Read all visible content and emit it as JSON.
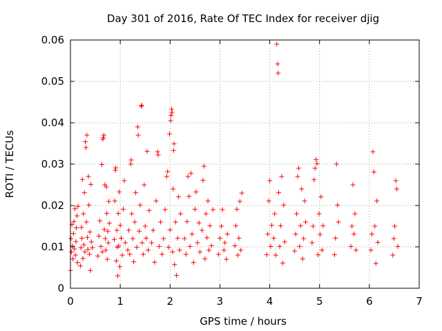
{
  "chart_data": {
    "type": "scatter",
    "title": "Day 301 of 2016, Rate Of TEC Index for receiver djig",
    "xlabel": "GPS time / hours",
    "ylabel": "ROTI / TECUs",
    "xlim": [
      0,
      7
    ],
    "ylim": [
      0,
      0.06
    ],
    "xticks": [
      "0",
      "1",
      "2",
      "3",
      "4",
      "5",
      "6",
      "7"
    ],
    "yticks": [
      "0",
      "0.01",
      "0.02",
      "0.03",
      "0.04",
      "0.05",
      "0.06"
    ],
    "grid": true,
    "marker": "+",
    "color": "#ff0000",
    "series": [
      {
        "name": "ROTI",
        "points": [
          [
            0.0,
            0.0043
          ],
          [
            0.01,
            0.012
          ],
          [
            0.02,
            0.0088
          ],
          [
            0.03,
            0.0154
          ],
          [
            0.04,
            0.0102
          ],
          [
            0.05,
            0.0071
          ],
          [
            0.06,
            0.0132
          ],
          [
            0.07,
            0.0161
          ],
          [
            0.08,
            0.0095
          ],
          [
            0.09,
            0.0192
          ],
          [
            0.1,
            0.008
          ],
          [
            0.11,
            0.0113
          ],
          [
            0.12,
            0.0146
          ],
          [
            0.13,
            0.0175
          ],
          [
            0.14,
            0.0062
          ],
          [
            0.15,
            0.0198
          ],
          [
            0.2,
            0.0054
          ],
          [
            0.21,
            0.0098
          ],
          [
            0.22,
            0.0147
          ],
          [
            0.23,
            0.0121
          ],
          [
            0.24,
            0.0263
          ],
          [
            0.25,
            0.0072
          ],
          [
            0.26,
            0.018
          ],
          [
            0.27,
            0.0105
          ],
          [
            0.28,
            0.0231
          ],
          [
            0.29,
            0.0088
          ],
          [
            0.3,
            0.0354
          ],
          [
            0.31,
            0.034
          ],
          [
            0.32,
            0.016
          ],
          [
            0.33,
            0.037
          ],
          [
            0.34,
            0.0123
          ],
          [
            0.35,
            0.0094
          ],
          [
            0.36,
            0.027
          ],
          [
            0.37,
            0.0201
          ],
          [
            0.38,
            0.0082
          ],
          [
            0.39,
            0.0136
          ],
          [
            0.4,
            0.0043
          ],
          [
            0.41,
            0.0251
          ],
          [
            0.42,
            0.0112
          ],
          [
            0.44,
            0.0098
          ],
          [
            0.55,
            0.0078
          ],
          [
            0.57,
            0.0126
          ],
          [
            0.59,
            0.0163
          ],
          [
            0.61,
            0.0101
          ],
          [
            0.63,
            0.0299
          ],
          [
            0.64,
            0.0088
          ],
          [
            0.65,
            0.036
          ],
          [
            0.66,
            0.0364
          ],
          [
            0.67,
            0.037
          ],
          [
            0.68,
            0.0142
          ],
          [
            0.69,
            0.025
          ],
          [
            0.7,
            0.012
          ],
          [
            0.71,
            0.0092
          ],
          [
            0.72,
            0.0245
          ],
          [
            0.73,
            0.0181
          ],
          [
            0.74,
            0.007
          ],
          [
            0.75,
            0.0138
          ],
          [
            0.76,
            0.011
          ],
          [
            0.77,
            0.021
          ],
          [
            0.78,
            0.0157
          ],
          [
            0.88,
            0.0118
          ],
          [
            0.89,
            0.0211
          ],
          [
            0.9,
            0.0285
          ],
          [
            0.91,
            0.0291
          ],
          [
            0.92,
            0.0066
          ],
          [
            0.93,
            0.014
          ],
          [
            0.94,
            0.0099
          ],
          [
            0.95,
            0.003
          ],
          [
            0.96,
            0.0181
          ],
          [
            0.97,
            0.0102
          ],
          [
            0.98,
            0.0233
          ],
          [
            0.99,
            0.0052
          ],
          [
            1.0,
            0.0152
          ],
          [
            1.02,
            0.0121
          ],
          [
            1.04,
            0.008
          ],
          [
            1.06,
            0.0191
          ],
          [
            1.08,
            0.026
          ],
          [
            1.1,
            0.011
          ],
          [
            1.15,
            0.0092
          ],
          [
            1.17,
            0.014
          ],
          [
            1.19,
            0.0082
          ],
          [
            1.21,
            0.03
          ],
          [
            1.22,
            0.031
          ],
          [
            1.23,
            0.018
          ],
          [
            1.25,
            0.012
          ],
          [
            1.27,
            0.0064
          ],
          [
            1.29,
            0.016
          ],
          [
            1.31,
            0.0231
          ],
          [
            1.33,
            0.0099
          ],
          [
            1.35,
            0.039
          ],
          [
            1.36,
            0.037
          ],
          [
            1.38,
            0.0138
          ],
          [
            1.4,
            0.0201
          ],
          [
            1.42,
            0.044
          ],
          [
            1.43,
            0.0442
          ],
          [
            1.44,
            0.011
          ],
          [
            1.46,
            0.0082
          ],
          [
            1.48,
            0.025
          ],
          [
            1.5,
            0.015
          ],
          [
            1.52,
            0.0121
          ],
          [
            1.54,
            0.0331
          ],
          [
            1.56,
            0.0092
          ],
          [
            1.58,
            0.0188
          ],
          [
            1.63,
            0.011
          ],
          [
            1.66,
            0.014
          ],
          [
            1.69,
            0.0063
          ],
          [
            1.72,
            0.0211
          ],
          [
            1.75,
            0.033
          ],
          [
            1.76,
            0.0322
          ],
          [
            1.78,
            0.0101
          ],
          [
            1.81,
            0.016
          ],
          [
            1.84,
            0.0082
          ],
          [
            1.87,
            0.012
          ],
          [
            1.9,
            0.019
          ],
          [
            1.93,
            0.027
          ],
          [
            1.95,
            0.0282
          ],
          [
            1.97,
            0.0099
          ],
          [
            1.99,
            0.0373
          ],
          [
            2.0,
            0.0141
          ],
          [
            2.01,
            0.0405
          ],
          [
            2.02,
            0.0418
          ],
          [
            2.03,
            0.0433
          ],
          [
            2.04,
            0.0425
          ],
          [
            2.05,
            0.0088
          ],
          [
            2.06,
            0.024
          ],
          [
            2.07,
            0.0333
          ],
          [
            2.08,
            0.0349
          ],
          [
            2.09,
            0.0057
          ],
          [
            2.11,
            0.016
          ],
          [
            2.13,
            0.0031
          ],
          [
            2.15,
            0.0121
          ],
          [
            2.17,
            0.0221
          ],
          [
            2.19,
            0.0092
          ],
          [
            2.21,
            0.018
          ],
          [
            2.29,
            0.012
          ],
          [
            2.32,
            0.0082
          ],
          [
            2.34,
            0.0161
          ],
          [
            2.36,
            0.027
          ],
          [
            2.38,
            0.0222
          ],
          [
            2.4,
            0.0101
          ],
          [
            2.42,
            0.0278
          ],
          [
            2.44,
            0.0131
          ],
          [
            2.47,
            0.0062
          ],
          [
            2.5,
            0.0191
          ],
          [
            2.52,
            0.0233
          ],
          [
            2.55,
            0.011
          ],
          [
            2.58,
            0.0158
          ],
          [
            2.6,
            0.0088
          ],
          [
            2.64,
            0.014
          ],
          [
            2.66,
            0.0261
          ],
          [
            2.68,
            0.0295
          ],
          [
            2.7,
            0.0071
          ],
          [
            2.72,
            0.018
          ],
          [
            2.74,
            0.0122
          ],
          [
            2.76,
            0.0211
          ],
          [
            2.78,
            0.0092
          ],
          [
            2.8,
            0.0151
          ],
          [
            2.83,
            0.0103
          ],
          [
            2.86,
            0.019
          ],
          [
            2.97,
            0.0082
          ],
          [
            3.0,
            0.0121
          ],
          [
            3.03,
            0.015
          ],
          [
            3.05,
            0.019
          ],
          [
            3.08,
            0.0092
          ],
          [
            3.1,
            0.011
          ],
          [
            3.13,
            0.007
          ],
          [
            3.15,
            0.0131
          ],
          [
            3.3,
            0.0103
          ],
          [
            3.32,
            0.0151
          ],
          [
            3.34,
            0.0191
          ],
          [
            3.36,
            0.008
          ],
          [
            3.38,
            0.0121
          ],
          [
            3.4,
            0.021
          ],
          [
            3.42,
            0.0092
          ],
          [
            3.44,
            0.023
          ],
          [
            3.94,
            0.0081
          ],
          [
            3.96,
            0.0131
          ],
          [
            3.98,
            0.0211
          ],
          [
            4.0,
            0.026
          ],
          [
            4.02,
            0.0101
          ],
          [
            4.04,
            0.0152
          ],
          [
            4.08,
            0.0121
          ],
          [
            4.1,
            0.018
          ],
          [
            4.12,
            0.008
          ],
          [
            4.14,
            0.059
          ],
          [
            4.16,
            0.0542
          ],
          [
            4.17,
            0.052
          ],
          [
            4.18,
            0.0231
          ],
          [
            4.2,
            0.0101
          ],
          [
            4.22,
            0.0151
          ],
          [
            4.24,
            0.027
          ],
          [
            4.26,
            0.0061
          ],
          [
            4.28,
            0.0201
          ],
          [
            4.3,
            0.0112
          ],
          [
            4.5,
            0.009
          ],
          [
            4.52,
            0.0131
          ],
          [
            4.54,
            0.018
          ],
          [
            4.56,
            0.027
          ],
          [
            4.58,
            0.029
          ],
          [
            4.6,
            0.0101
          ],
          [
            4.62,
            0.0151
          ],
          [
            4.64,
            0.024
          ],
          [
            4.66,
            0.0071
          ],
          [
            4.68,
            0.012
          ],
          [
            4.7,
            0.0211
          ],
          [
            4.72,
            0.016
          ],
          [
            4.85,
            0.011
          ],
          [
            4.87,
            0.015
          ],
          [
            4.89,
            0.0262
          ],
          [
            4.91,
            0.029
          ],
          [
            4.93,
            0.0311
          ],
          [
            4.95,
            0.0301
          ],
          [
            4.97,
            0.0081
          ],
          [
            4.99,
            0.018
          ],
          [
            5.01,
            0.013
          ],
          [
            5.03,
            0.0221
          ],
          [
            5.05,
            0.0092
          ],
          [
            5.07,
            0.0151
          ],
          [
            5.3,
            0.0081
          ],
          [
            5.32,
            0.0121
          ],
          [
            5.34,
            0.03
          ],
          [
            5.36,
            0.0201
          ],
          [
            5.38,
            0.016
          ],
          [
            5.63,
            0.0101
          ],
          [
            5.65,
            0.015
          ],
          [
            5.67,
            0.025
          ],
          [
            5.69,
            0.0131
          ],
          [
            5.71,
            0.018
          ],
          [
            5.73,
            0.0092
          ],
          [
            6.03,
            0.0092
          ],
          [
            6.05,
            0.0131
          ],
          [
            6.07,
            0.033
          ],
          [
            6.09,
            0.0281
          ],
          [
            6.11,
            0.015
          ],
          [
            6.13,
            0.006
          ],
          [
            6.15,
            0.0211
          ],
          [
            6.17,
            0.0111
          ],
          [
            6.47,
            0.008
          ],
          [
            6.49,
            0.012
          ],
          [
            6.51,
            0.015
          ],
          [
            6.53,
            0.026
          ],
          [
            6.55,
            0.024
          ],
          [
            6.57,
            0.0101
          ]
        ]
      }
    ]
  }
}
